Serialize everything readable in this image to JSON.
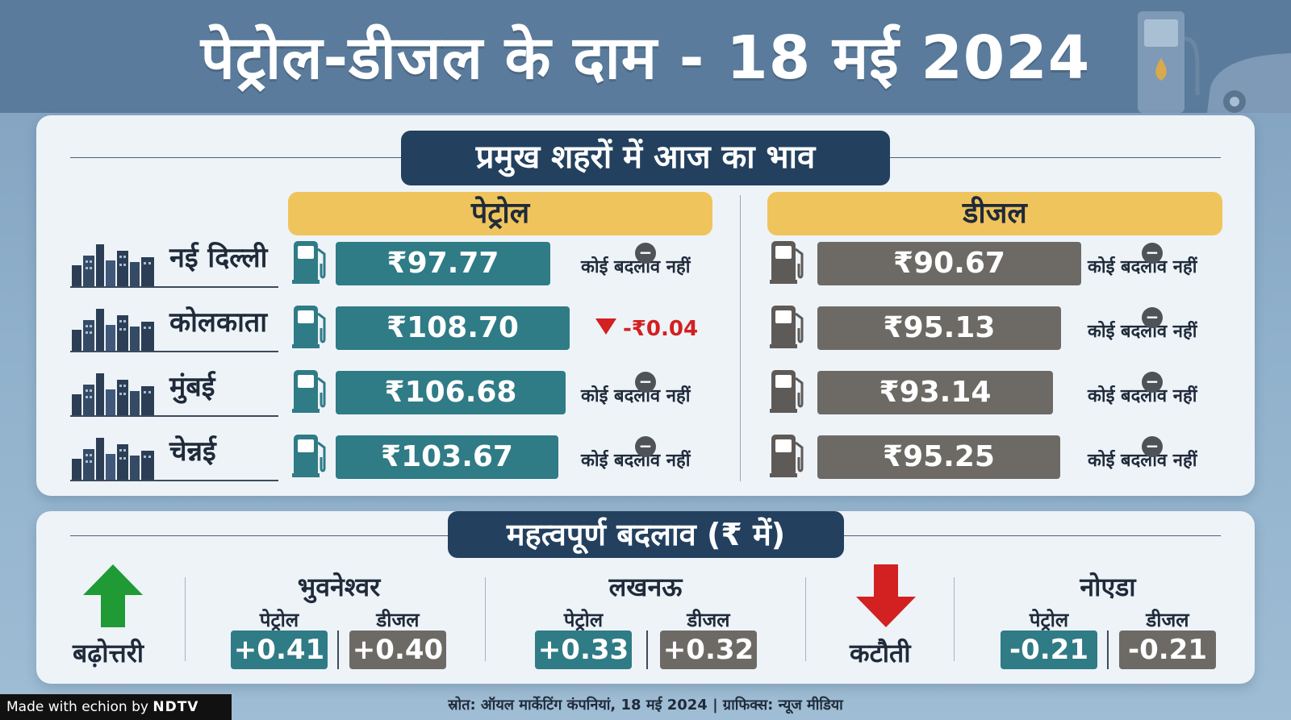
{
  "header": {
    "title": "पेट्रोल-डीजल के दाम - 18 मई 2024"
  },
  "main": {
    "section_title": "प्रमुख शहरों में आज का भाव",
    "petrol_heading": "पेट्रोल",
    "diesel_heading": "डीजल",
    "rows": [
      {
        "city": "नई दिल्ली",
        "petrol_price": "₹97.77",
        "petrol_status": "कोई बदलाव नहीं",
        "diesel_price": "₹90.67",
        "diesel_status": "कोई बदलाव नहीं"
      },
      {
        "city": "कोलकाता",
        "petrol_price": "₹108.70",
        "petrol_status": "-₹0.04",
        "diesel_price": "₹95.13",
        "diesel_status": "कोई बदलाव नहीं"
      },
      {
        "city": "मुंबई",
        "petrol_price": "₹106.68",
        "petrol_status": "कोई बदलाव नहीं",
        "diesel_price": "₹93.14",
        "diesel_status": "कोई बदलाव नहीं"
      },
      {
        "city": "चेन्नई",
        "petrol_price": "₹103.67",
        "petrol_status": "कोई बदलाव नहीं",
        "diesel_price": "₹95.25",
        "diesel_status": "कोई बदलाव नहीं"
      }
    ]
  },
  "changes": {
    "section_title": "महत्वपूर्ण बदलाव (₹ में)",
    "increase_label": "बढ़ोत्तरी",
    "decrease_label": "कटौती",
    "petrol_label": "पेट्रोल",
    "diesel_label": "डीजल",
    "cities": [
      {
        "name": "भुवनेश्वर",
        "petrol": "+0.41",
        "diesel": "+0.40"
      },
      {
        "name": "लखनऊ",
        "petrol": "+0.33",
        "diesel": "+0.32"
      },
      {
        "name": "नोएडा",
        "petrol": "-0.21",
        "diesel": "-0.21"
      }
    ]
  },
  "footer": {
    "source": "स्रोत: ऑयल मार्केटिंग कंपनियां, 18 मई 2024 | ग्राफिक्स: न्यूज मीडिया",
    "made_with_prefix": "Made with",
    "made_with_brand": "echion",
    "made_with_by": "by",
    "made_with_org": "NDTV"
  },
  "colors": {
    "header_bg": "#5a7b9c",
    "pill_bg": "#23405f",
    "fuel_head_bg": "#f0c45c",
    "petrol": "#2f7b86",
    "diesel": "#6d6a66",
    "increase_arrow": "#1f9a34",
    "decrease_arrow": "#d32020"
  },
  "icons": [
    "fuel-pump-icon",
    "city-skyline-icon",
    "no-change-icon",
    "down-triangle-icon",
    "up-arrow-icon",
    "down-arrow-icon"
  ]
}
